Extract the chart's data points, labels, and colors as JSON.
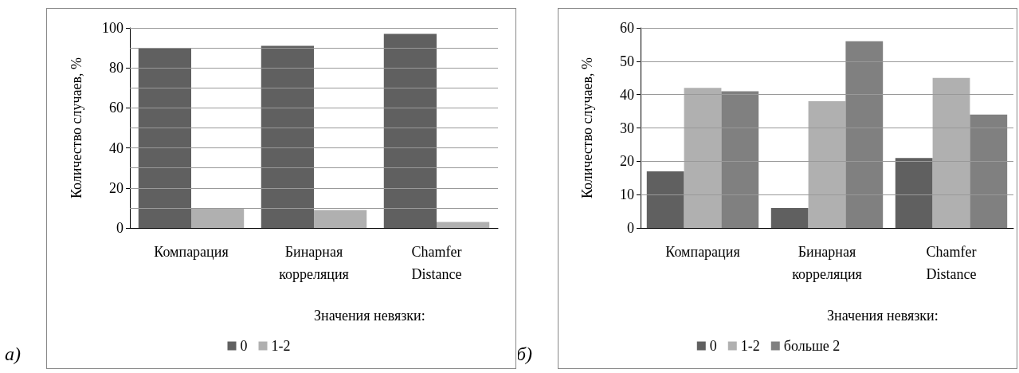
{
  "chart_data": [
    {
      "type": "bar",
      "ylabel": "Количество случаев, %",
      "legend_title": "Значения невязки:",
      "annotations": [
        "а)"
      ],
      "categories": [
        "Компарация",
        "Бинарная\nкорреляция",
        "Chamfer\nDistance"
      ],
      "series": [
        {
          "name": "0",
          "color": "#606060",
          "values": [
            90,
            91,
            97
          ]
        },
        {
          "name": "1-2",
          "color": "#b0b0b0",
          "values": [
            10,
            9,
            3
          ]
        }
      ],
      "ylim": [
        0,
        100
      ],
      "yticks": [
        0,
        {
          "value": 10,
          "label": null
        },
        20,
        {
          "value": 30,
          "label": null
        },
        40,
        {
          "value": 50,
          "label": null
        },
        60,
        {
          "value": 70,
          "label": null
        },
        80,
        {
          "value": 90,
          "label": null
        },
        100
      ],
      "grid": "y",
      "legend": "bottom"
    },
    {
      "type": "bar",
      "ylabel": "Количество случаев, %",
      "legend_title": "Значения невязки:",
      "annotations": [
        "б)"
      ],
      "categories": [
        "Компарация",
        "Бинарная\nкорреляция",
        "Chamfer\nDistance"
      ],
      "series": [
        {
          "name": "0",
          "color": "#606060",
          "values": [
            17,
            6,
            21
          ]
        },
        {
          "name": "1-2",
          "color": "#b0b0b0",
          "values": [
            42,
            38,
            45
          ]
        },
        {
          "name": "больше 2",
          "color": "#808080",
          "values": [
            41,
            56,
            34
          ]
        }
      ],
      "ylim": [
        0,
        60
      ],
      "yticks": [
        0,
        10,
        20,
        30,
        40,
        50,
        60
      ],
      "grid": "y",
      "legend": "bottom"
    }
  ]
}
